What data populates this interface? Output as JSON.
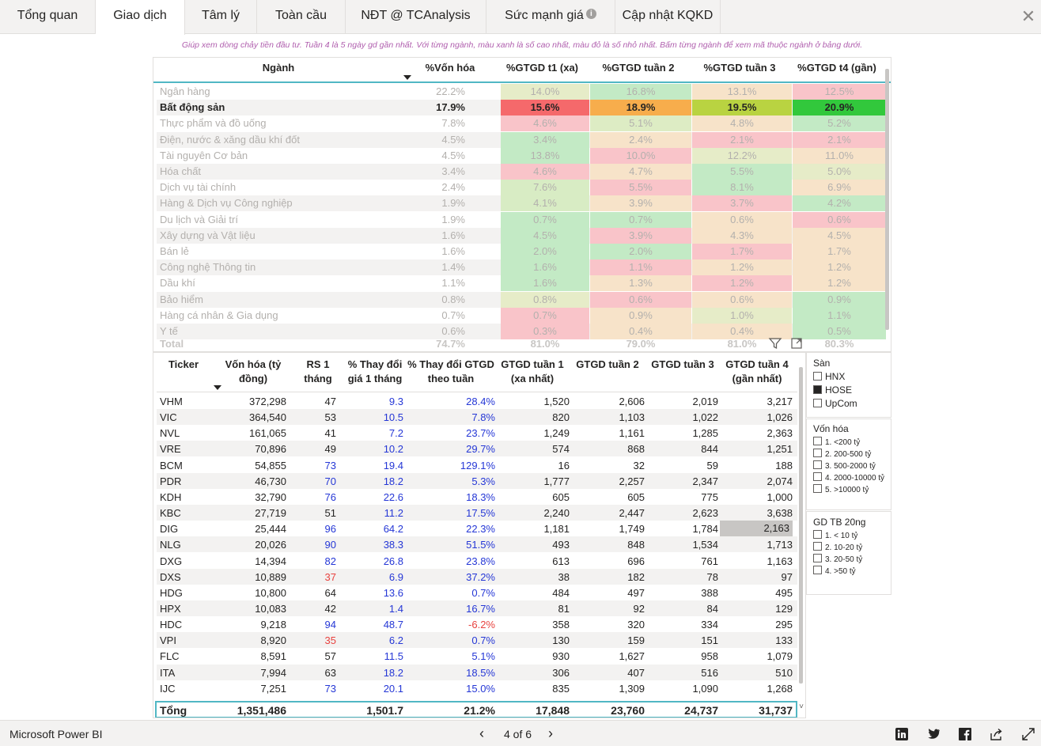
{
  "tabs": [
    {
      "label": "Tổng quan"
    },
    {
      "label": "Giao dịch"
    },
    {
      "label": "Tâm lý"
    },
    {
      "label": "Toàn cầu"
    },
    {
      "label": "NĐT @ TCAnalysis"
    },
    {
      "label": "Sức mạnh giá"
    },
    {
      "label": "Cập nhật KQKD"
    }
  ],
  "subtitle": "Giúp xem dòng chảy tiền đầu tư. Tuần 4 là 5 ngày gd gần nhất. Với từng ngành, màu xanh là số cao nhất, màu đỏ là số nhỏ nhất. Bấm từng ngành để xem mã thuộc ngành ở bảng dưới.",
  "industry": {
    "headers": [
      "Ngành",
      "%Vốn hóa",
      "%GTGD t1 (xa)",
      "%GTGD tuần 2",
      "%GTGD tuần 3",
      "%GTGD t4 (gần)"
    ],
    "rows": [
      {
        "name": "Ngân hàng",
        "vh": "22.2%",
        "v": [
          "14.0%",
          "16.8%",
          "13.1%",
          "12.5%"
        ],
        "colors": [
          "#e6ecc8",
          "#c3eac5",
          "#f7e3c9",
          "#f9c4c9"
        ]
      },
      {
        "name": "Bất động sản",
        "vh": "17.9%",
        "v": [
          "15.6%",
          "18.9%",
          "19.5%",
          "20.9%"
        ],
        "colors": [
          "#f5696b",
          "#f7ad4c",
          "#b9d341",
          "#32c83c"
        ],
        "selected": true
      },
      {
        "name": "Thực phẩm và đồ uống",
        "vh": "7.8%",
        "v": [
          "4.6%",
          "5.1%",
          "4.8%",
          "5.2%"
        ],
        "colors": [
          "#f9c4c9",
          "#ddecc4",
          "#f7e3c9",
          "#c3eac5"
        ]
      },
      {
        "name": "Điện, nước & xăng dầu khí đốt",
        "vh": "4.5%",
        "v": [
          "3.4%",
          "2.4%",
          "2.1%",
          "2.1%"
        ],
        "colors": [
          "#c3eac5",
          "#f7e3c9",
          "#f9c4c9",
          "#f9c4c9"
        ]
      },
      {
        "name": "Tài nguyên Cơ bản",
        "vh": "4.5%",
        "v": [
          "13.8%",
          "10.0%",
          "12.2%",
          "11.0%"
        ],
        "colors": [
          "#c3eac5",
          "#f9c4c9",
          "#e6ecc8",
          "#f7e3c9"
        ]
      },
      {
        "name": "Hóa chất",
        "vh": "3.4%",
        "v": [
          "4.6%",
          "4.7%",
          "5.5%",
          "5.0%"
        ],
        "colors": [
          "#f9c4c9",
          "#f7e3c9",
          "#c3eac5",
          "#e6ecc8"
        ]
      },
      {
        "name": "Dịch vụ tài chính",
        "vh": "2.4%",
        "v": [
          "7.6%",
          "5.5%",
          "8.1%",
          "6.9%"
        ],
        "colors": [
          "#d8ecc4",
          "#f9c4c9",
          "#c3eac5",
          "#f7e3c9"
        ]
      },
      {
        "name": "Hàng & Dịch vụ Công nghiệp",
        "vh": "1.9%",
        "v": [
          "4.1%",
          "3.9%",
          "3.7%",
          "4.2%"
        ],
        "colors": [
          "#d8ecc4",
          "#f7e3c9",
          "#f9c4c9",
          "#c3eac5"
        ]
      },
      {
        "name": "Du lịch và Giải trí",
        "vh": "1.9%",
        "v": [
          "0.7%",
          "0.7%",
          "0.6%",
          "0.6%"
        ],
        "colors": [
          "#c3eac5",
          "#c3eac5",
          "#f7e3c9",
          "#f9c4c9"
        ]
      },
      {
        "name": "Xây dựng và Vật liệu",
        "vh": "1.6%",
        "v": [
          "4.5%",
          "3.9%",
          "4.3%",
          "4.5%"
        ],
        "colors": [
          "#c3eac5",
          "#f9c4c9",
          "#f7e3c9",
          "#f7e3c9"
        ]
      },
      {
        "name": "Bán lẻ",
        "vh": "1.6%",
        "v": [
          "2.0%",
          "2.0%",
          "1.7%",
          "1.7%"
        ],
        "colors": [
          "#c3eac5",
          "#c3eac5",
          "#f9c4c9",
          "#f7e3c9"
        ]
      },
      {
        "name": "Công nghệ Thông tin",
        "vh": "1.4%",
        "v": [
          "1.6%",
          "1.1%",
          "1.2%",
          "1.2%"
        ],
        "colors": [
          "#c3eac5",
          "#f9c4c9",
          "#f7e3c9",
          "#f7e3c9"
        ]
      },
      {
        "name": "Dầu khí",
        "vh": "1.1%",
        "v": [
          "1.6%",
          "1.3%",
          "1.2%",
          "1.2%"
        ],
        "colors": [
          "#c3eac5",
          "#f7e3c9",
          "#f9c4c9",
          "#f7e3c9"
        ]
      },
      {
        "name": "Bảo hiểm",
        "vh": "0.8%",
        "v": [
          "0.8%",
          "0.6%",
          "0.6%",
          "0.9%"
        ],
        "colors": [
          "#e6ecc8",
          "#f9c4c9",
          "#f7e3c9",
          "#c3eac5"
        ]
      },
      {
        "name": "Hàng cá nhân & Gia dụng",
        "vh": "0.7%",
        "v": [
          "0.7%",
          "0.9%",
          "1.0%",
          "1.1%"
        ],
        "colors": [
          "#f9c4c9",
          "#f7e3c9",
          "#e6ecc8",
          "#c3eac5"
        ]
      },
      {
        "name": "Y tế",
        "vh": "0.6%",
        "v": [
          "0.3%",
          "0.4%",
          "0.4%",
          "0.5%"
        ],
        "colors": [
          "#f9c4c9",
          "#f7e3c9",
          "#f7e3c9",
          "#c3eac5"
        ]
      }
    ],
    "total": {
      "label": "Total",
      "vh": "74.7%",
      "v": [
        "81.0%",
        "79.0%",
        "81.0%",
        "80.3%"
      ]
    }
  },
  "tickers": {
    "headers": [
      "Ticker",
      "Vốn hóa (tỷ đồng)",
      "RS 1 tháng",
      "% Thay đổi giá 1 tháng",
      "% Thay đổi GTGD theo tuần",
      "GTGD tuần 1 (xa nhất)",
      "GTGD tuần 2",
      "GTGD tuần 3",
      "GTGD tuần 4 (gần nhất)"
    ],
    "rows": [
      {
        "t": "VHM",
        "vh": "372,298",
        "rs": "47",
        "p": "9.3",
        "g": "28.4%",
        "w1": "1,520",
        "w2": "2,606",
        "w3": "2,019",
        "w4": "3,217"
      },
      {
        "t": "VIC",
        "vh": "364,540",
        "rs": "53",
        "p": "10.5",
        "g": "7.8%",
        "w1": "820",
        "w2": "1,103",
        "w3": "1,022",
        "w4": "1,026"
      },
      {
        "t": "NVL",
        "vh": "161,065",
        "rs": "41",
        "p": "7.2",
        "g": "23.7%",
        "w1": "1,249",
        "w2": "1,161",
        "w3": "1,285",
        "w4": "2,363"
      },
      {
        "t": "VRE",
        "vh": "70,896",
        "rs": "49",
        "p": "10.2",
        "g": "29.7%",
        "w1": "574",
        "w2": "868",
        "w3": "844",
        "w4": "1,251"
      },
      {
        "t": "BCM",
        "vh": "54,855",
        "rs": "73",
        "p": "19.4",
        "g": "129.1%",
        "w1": "16",
        "w2": "32",
        "w3": "59",
        "w4": "188"
      },
      {
        "t": "PDR",
        "vh": "46,730",
        "rs": "70",
        "p": "18.2",
        "g": "5.3%",
        "w1": "1,777",
        "w2": "2,257",
        "w3": "2,347",
        "w4": "2,074"
      },
      {
        "t": "KDH",
        "vh": "32,790",
        "rs": "76",
        "p": "22.6",
        "g": "18.3%",
        "w1": "605",
        "w2": "605",
        "w3": "775",
        "w4": "1,000"
      },
      {
        "t": "KBC",
        "vh": "27,719",
        "rs": "51",
        "p": "11.2",
        "g": "17.5%",
        "w1": "2,240",
        "w2": "2,447",
        "w3": "2,623",
        "w4": "3,638"
      },
      {
        "t": "DIG",
        "vh": "25,444",
        "rs": "96",
        "p": "64.2",
        "g": "22.3%",
        "w1": "1,181",
        "w2": "1,749",
        "w3": "1,784",
        "w4": "2,163",
        "hl": true
      },
      {
        "t": "NLG",
        "vh": "20,026",
        "rs": "90",
        "p": "38.3",
        "g": "51.5%",
        "w1": "493",
        "w2": "848",
        "w3": "1,534",
        "w4": "1,713"
      },
      {
        "t": "DXG",
        "vh": "14,394",
        "rs": "82",
        "p": "26.8",
        "g": "23.8%",
        "w1": "613",
        "w2": "696",
        "w3": "761",
        "w4": "1,163"
      },
      {
        "t": "DXS",
        "vh": "10,889",
        "rs": "37",
        "p": "6.9",
        "g": "37.2%",
        "w1": "38",
        "w2": "182",
        "w3": "78",
        "w4": "97"
      },
      {
        "t": "HDG",
        "vh": "10,800",
        "rs": "64",
        "p": "13.6",
        "g": "0.7%",
        "w1": "484",
        "w2": "497",
        "w3": "388",
        "w4": "495"
      },
      {
        "t": "HPX",
        "vh": "10,083",
        "rs": "42",
        "p": "1.4",
        "g": "16.7%",
        "w1": "81",
        "w2": "92",
        "w3": "84",
        "w4": "129"
      },
      {
        "t": "HDC",
        "vh": "9,218",
        "rs": "94",
        "p": "48.7",
        "g": "-6.2%",
        "w1": "358",
        "w2": "320",
        "w3": "334",
        "w4": "295"
      },
      {
        "t": "VPI",
        "vh": "8,920",
        "rs": "35",
        "p": "6.2",
        "g": "0.7%",
        "w1": "130",
        "w2": "159",
        "w3": "151",
        "w4": "133"
      },
      {
        "t": "FLC",
        "vh": "8,591",
        "rs": "57",
        "p": "11.5",
        "g": "5.1%",
        "w1": "930",
        "w2": "1,627",
        "w3": "958",
        "w4": "1,079"
      },
      {
        "t": "ITA",
        "vh": "7,994",
        "rs": "63",
        "p": "18.2",
        "g": "18.5%",
        "w1": "306",
        "w2": "407",
        "w3": "516",
        "w4": "510"
      },
      {
        "t": "IJC",
        "vh": "7,251",
        "rs": "73",
        "p": "20.1",
        "g": "15.0%",
        "w1": "835",
        "w2": "1,309",
        "w3": "1,090",
        "w4": "1,268"
      }
    ],
    "total": {
      "t": "Tổng",
      "vh": "1,351,486",
      "p": "1,501.7",
      "g": "21.2%",
      "w1": "17,848",
      "w2": "23,760",
      "w3": "24,737",
      "w4": "31,737"
    }
  },
  "slicers": {
    "san": {
      "title": "Sàn",
      "items": [
        {
          "label": "HNX",
          "checked": false
        },
        {
          "label": "HOSE",
          "checked": true
        },
        {
          "label": "UpCom",
          "checked": false
        }
      ]
    },
    "vonhoa": {
      "title": "Vốn hóa",
      "items": [
        {
          "label": "1. <200 tỷ"
        },
        {
          "label": "2. 200-500 tỷ"
        },
        {
          "label": "3. 500-2000 tỷ"
        },
        {
          "label": "4. 2000-10000 tỷ"
        },
        {
          "label": "5. >10000 tỷ"
        }
      ]
    },
    "gdtb": {
      "title": "GD TB 20ng",
      "items": [
        {
          "label": "1. < 10 tỷ"
        },
        {
          "label": "2. 10-20 tỷ"
        },
        {
          "label": "3. 20-50 tỷ"
        },
        {
          "label": "4. >50 tỷ"
        }
      ]
    }
  },
  "footer": {
    "brand": "Microsoft Power BI",
    "page": "4 of 6"
  },
  "colors": {
    "accent": "#51b7c4",
    "blue_value": "#2537d6",
    "red_value": "#e8423f",
    "highlight": "#c8c6c4"
  }
}
